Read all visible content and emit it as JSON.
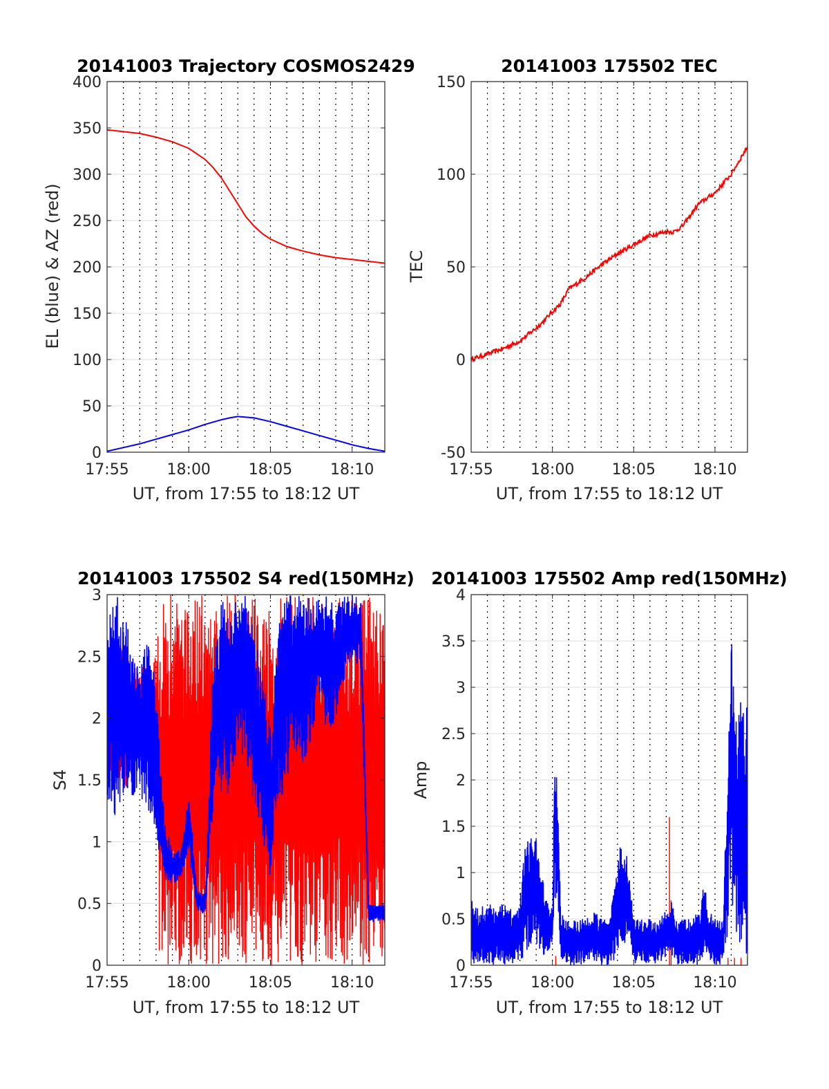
{
  "figure": {
    "background": "#ffffff"
  },
  "chart_data": [
    {
      "type": "line",
      "title": "20141003 Trajectory COSMOS2429",
      "xlabel": "UT, from 17:55 to 18:12 UT",
      "ylabel": "EL (blue) & AZ (red)",
      "x_unit": "minutes after 17:55 UT",
      "xlim": [
        0,
        17
      ],
      "ylim": [
        0,
        400
      ],
      "x_ticks": [
        0,
        5,
        10,
        15
      ],
      "x_tick_labels": [
        "17:55",
        "18:00",
        "18:05",
        "18:10"
      ],
      "y_ticks": [
        0,
        50,
        100,
        150,
        200,
        250,
        300,
        350,
        400
      ],
      "y_tick_labels": [
        "0",
        "50",
        "100",
        "150",
        "200",
        "250",
        "300",
        "350",
        "400"
      ],
      "grid": {
        "horizontal": true,
        "vertical_dotted_minutes": [
          1,
          2,
          3,
          4,
          5,
          6,
          7,
          8,
          9,
          10,
          11,
          12,
          13,
          14,
          15,
          16
        ]
      },
      "series": [
        {
          "color": "#ff0000",
          "x": [
            0,
            1,
            2,
            3,
            4,
            5,
            6,
            6.5,
            7,
            7.5,
            8,
            8.5,
            9,
            9.5,
            10,
            11,
            12,
            13,
            14,
            15,
            16,
            17
          ],
          "values": [
            348,
            346,
            344,
            340,
            335,
            328,
            316,
            307,
            296,
            282,
            268,
            254,
            244,
            236,
            230,
            222,
            217,
            213,
            210,
            208,
            206,
            204
          ]
        },
        {
          "color": "#0000ff",
          "x": [
            0,
            1,
            2,
            3,
            4,
            5,
            6,
            7,
            7.5,
            8,
            9,
            10,
            11,
            12,
            13,
            14,
            15,
            16,
            17
          ],
          "values": [
            1,
            5,
            9,
            14,
            19,
            24,
            30,
            35,
            37,
            38.5,
            37,
            33,
            28,
            23,
            18,
            13,
            8,
            4,
            1
          ]
        }
      ]
    },
    {
      "type": "line",
      "title": "20141003 175502 TEC",
      "xlabel": "UT, from 17:55 to 18:12 UT",
      "ylabel": "TEC",
      "x_unit": "minutes after 17:55 UT",
      "xlim": [
        0,
        17
      ],
      "ylim": [
        -50,
        150
      ],
      "x_ticks": [
        0,
        5,
        10,
        15
      ],
      "x_tick_labels": [
        "17:55",
        "18:00",
        "18:05",
        "18:10"
      ],
      "y_ticks": [
        -50,
        0,
        50,
        100,
        150
      ],
      "y_tick_labels": [
        "-50",
        "0",
        "50",
        "100",
        "150"
      ],
      "grid": {
        "horizontal": true,
        "vertical_dotted_minutes": [
          1,
          2,
          3,
          4,
          5,
          6,
          7,
          8,
          9,
          10,
          11,
          12,
          13,
          14,
          15,
          16
        ]
      },
      "noise": 1.2,
      "series": [
        {
          "color": "#ff0000",
          "x": [
            0,
            1,
            2,
            3,
            4,
            4.5,
            5,
            5.5,
            6,
            7,
            8,
            9,
            10,
            11,
            12,
            12.5,
            13,
            14,
            15,
            16,
            17
          ],
          "values": [
            0,
            3,
            6,
            10,
            17,
            21,
            26,
            30,
            38,
            44,
            51,
            57,
            62,
            67,
            69,
            69,
            72,
            84,
            90,
            100,
            115
          ]
        }
      ]
    },
    {
      "type": "line",
      "title": "20141003 175502 S4 red(150MHz)",
      "xlabel": "UT, from 17:55 to 18:12 UT",
      "ylabel": "S4",
      "x_unit": "minutes after 17:55 UT",
      "xlim": [
        0,
        17
      ],
      "ylim": [
        0,
        3
      ],
      "x_ticks": [
        0,
        5,
        10,
        15
      ],
      "x_tick_labels": [
        "17:55",
        "18:00",
        "18:05",
        "18:10"
      ],
      "y_ticks": [
        0,
        0.5,
        1,
        1.5,
        2,
        2.5,
        3
      ],
      "y_tick_labels": [
        "0",
        "0.5",
        "1",
        "1.5",
        "2",
        "2.5",
        "3"
      ],
      "grid": {
        "horizontal": true,
        "vertical_dotted_minutes": [
          1,
          2,
          3,
          4,
          5,
          6,
          7,
          8,
          9,
          10,
          11,
          12,
          13,
          14,
          15,
          16
        ]
      },
      "series": [
        {
          "color": "#ff0000",
          "kind": "spikes",
          "x": [
            0,
            1,
            2,
            3,
            3.2,
            3.5,
            4,
            4.5,
            5,
            5.5,
            6,
            6.5,
            7,
            7.5,
            8,
            8.5,
            9,
            9.5,
            10,
            10.5,
            11,
            11.5,
            12,
            12.5,
            13,
            13.5,
            14,
            14.5,
            15,
            15.5,
            16,
            16.5,
            17
          ],
          "low": [
            1.5,
            1.4,
            1.6,
            1.5,
            0,
            0,
            0,
            0,
            0,
            0,
            0,
            0,
            0,
            0,
            0,
            0,
            0,
            0,
            0,
            0,
            0,
            0,
            0,
            0,
            0,
            0,
            0,
            0,
            0,
            0,
            0,
            0,
            0
          ],
          "high": [
            2.6,
            2.6,
            2.4,
            2.5,
            3,
            3,
            3,
            3,
            3,
            3,
            3,
            3,
            3,
            3,
            3,
            3,
            3,
            3,
            3,
            3,
            3,
            3,
            3,
            3,
            3,
            3,
            3,
            3,
            3,
            3,
            3,
            3,
            3
          ]
        },
        {
          "color": "#0000ff",
          "kind": "band",
          "x": [
            0,
            0.5,
            1,
            1.5,
            2,
            2.5,
            3,
            3.5,
            4,
            4.5,
            5,
            5.5,
            6,
            6.5,
            7,
            7.5,
            8,
            8.5,
            9,
            9.5,
            10,
            10.5,
            11,
            11.5,
            12,
            12.5,
            13,
            13.5,
            14,
            14.5,
            15,
            15.5,
            16,
            16.5,
            17
          ],
          "low": [
            1.3,
            1.2,
            1.4,
            1.3,
            1.4,
            1.2,
            1.0,
            0.7,
            0.65,
            0.7,
            0.9,
            0.45,
            0.4,
            1.2,
            1.3,
            1.4,
            1.8,
            1.6,
            1.3,
            1.0,
            0.7,
            1.2,
            1.5,
            1.7,
            1.6,
            1.8,
            2.2,
            1.8,
            2.0,
            2.3,
            2.5,
            2.4,
            0.35,
            0.35,
            0.35
          ],
          "high": [
            2.9,
            3,
            3,
            2.5,
            2.4,
            2.7,
            2.2,
            1.2,
            0.9,
            0.95,
            1.4,
            0.6,
            0.6,
            2.6,
            3,
            2.8,
            3,
            3,
            2.7,
            2.4,
            1.9,
            2.8,
            3,
            3,
            3,
            3,
            3,
            3,
            2.9,
            3,
            3,
            3,
            0.5,
            0.5,
            0.5
          ]
        }
      ]
    },
    {
      "type": "line",
      "title": "20141003 175502 Amp red(150MHz)",
      "xlabel": "UT, from 17:55 to 18:12 UT",
      "ylabel": "Amp",
      "x_unit": "minutes after 17:55 UT",
      "xlim": [
        0,
        17
      ],
      "ylim": [
        0,
        4
      ],
      "x_ticks": [
        0,
        5,
        10,
        15
      ],
      "x_tick_labels": [
        "17:55",
        "18:00",
        "18:05",
        "18:10"
      ],
      "y_ticks": [
        0,
        0.5,
        1,
        1.5,
        2,
        2.5,
        3,
        3.5,
        4
      ],
      "y_tick_labels": [
        "0",
        "0.5",
        "1",
        "1.5",
        "2",
        "2.5",
        "3",
        "3.5",
        "4"
      ],
      "grid": {
        "horizontal": true,
        "vertical_dotted_minutes": [
          1,
          2,
          3,
          4,
          5,
          6,
          7,
          8,
          9,
          10,
          11,
          12,
          13,
          14,
          15,
          16
        ]
      },
      "series": [
        {
          "color": "#ff0000",
          "kind": "spikes",
          "x": [
            5.2,
            12.2,
            12.3,
            15.8,
            16.2,
            16.6,
            17
          ],
          "low": [
            0,
            0,
            0,
            0,
            0,
            0,
            0
          ],
          "high": [
            0.1,
            1.6,
            0.7,
            0.08,
            0.08,
            0.08,
            0.08
          ]
        },
        {
          "color": "#0000ff",
          "kind": "band",
          "x": [
            0,
            0.5,
            1,
            1.5,
            2,
            2.5,
            3,
            3.3,
            3.6,
            4,
            4.5,
            5,
            5.1,
            5.3,
            5.5,
            5.8,
            6,
            6.5,
            7,
            7.5,
            8,
            8.5,
            9,
            9.2,
            9.4,
            9.6,
            9.8,
            10,
            10.5,
            11,
            11.5,
            12,
            12.3,
            12.6,
            13,
            13.5,
            14,
            14.3,
            14.6,
            15,
            15.5,
            15.8,
            16,
            16.2,
            16.5,
            17
          ],
          "low": [
            0,
            0,
            0,
            0,
            0,
            0,
            0,
            0.1,
            0.2,
            0.2,
            0.1,
            0.2,
            0.6,
            0.8,
            0.1,
            0,
            0,
            0,
            0,
            0,
            0,
            0,
            0.1,
            0.3,
            0.2,
            0.2,
            0.2,
            0,
            0,
            0,
            0,
            0.1,
            0.1,
            0,
            0,
            0,
            0,
            0.1,
            0,
            0,
            0,
            0.3,
            0.8,
            0.4,
            0.2,
            0.1
          ],
          "high": [
            0.7,
            0.6,
            0.7,
            0.6,
            0.7,
            0.6,
            0.8,
            1.3,
            1.4,
            1.4,
            0.8,
            0.6,
            2.45,
            2.0,
            0.6,
            0.5,
            0.5,
            0.5,
            0.5,
            0.6,
            0.5,
            0.5,
            1.1,
            1.43,
            1.2,
            1.2,
            0.8,
            0.5,
            0.5,
            0.5,
            0.5,
            0.6,
            0.7,
            0.5,
            0.5,
            0.5,
            0.6,
            0.9,
            0.6,
            0.5,
            0.5,
            2.7,
            3.6,
            2.8,
            2.9,
            2.8
          ]
        }
      ]
    }
  ]
}
